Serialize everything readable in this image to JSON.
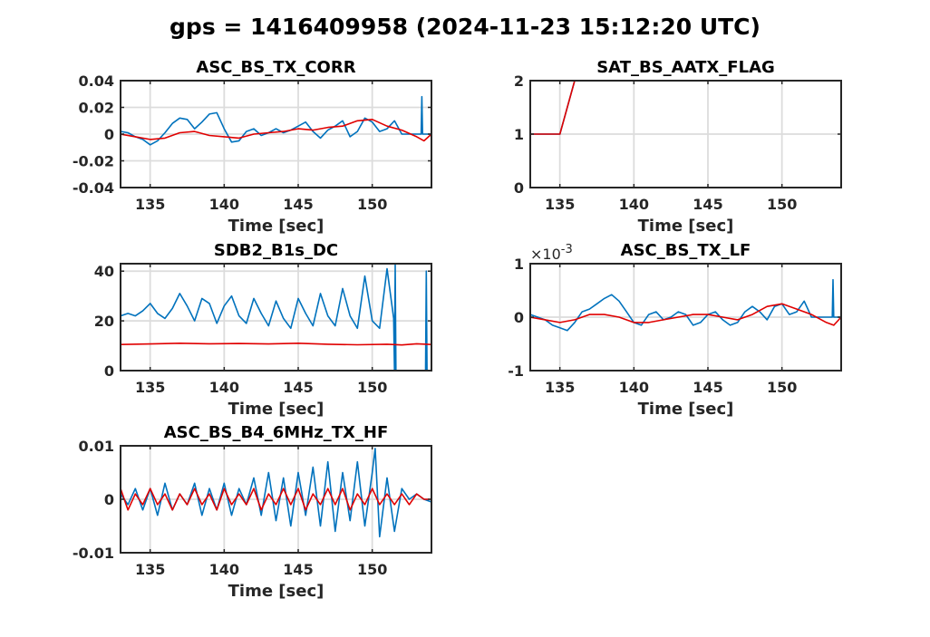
{
  "figure": {
    "suptitle": "gps = 1416409958 (2024-11-23 15:12:20 UTC)"
  },
  "colors": {
    "series_blue": "#0072bd",
    "series_red": "#e00000",
    "grid": "#dcdcdc",
    "axis": "#262626"
  },
  "chart_data": [
    {
      "type": "line",
      "title": "ASC_BS_TX_CORR",
      "xlabel": "Time [sec]",
      "ylabel": "",
      "xlim": [
        133,
        154
      ],
      "ylim": [
        -0.04,
        0.04
      ],
      "xticks": [
        135,
        140,
        145,
        150
      ],
      "yticks": [
        -0.04,
        -0.02,
        0,
        0.02,
        0.04
      ],
      "ytick_labels": [
        "-0.04",
        "-0.02",
        "0",
        "0.02",
        "0.04"
      ],
      "grid": true,
      "series": [
        {
          "color": "blue",
          "x": [
            133,
            133.5,
            134,
            134.5,
            135,
            135.5,
            136,
            136.5,
            137,
            137.5,
            138,
            138.5,
            139,
            139.5,
            140,
            140.5,
            141,
            141.5,
            142,
            142.5,
            143,
            143.5,
            144,
            144.5,
            145,
            145.5,
            146,
            146.5,
            147,
            147.5,
            148,
            148.5,
            149,
            149.5,
            150,
            150.5,
            151,
            151.5,
            152,
            152.5,
            153,
            153.3,
            153.35,
            153.4,
            153.5,
            154
          ],
          "y": [
            0.002,
            0.001,
            -0.002,
            -0.004,
            -0.008,
            -0.005,
            0.001,
            0.008,
            0.012,
            0.011,
            0.004,
            0.009,
            0.015,
            0.016,
            0.004,
            -0.006,
            -0.005,
            0.002,
            0.004,
            -0.001,
            0.001,
            0.004,
            0.001,
            0.003,
            0.006,
            0.009,
            0.002,
            -0.003,
            0.003,
            0.006,
            0.01,
            -0.002,
            0.002,
            0.012,
            0.009,
            0.002,
            0.004,
            0.01,
            0,
            0,
            0,
            0,
            0.028,
            0,
            0,
            0
          ]
        },
        {
          "color": "red",
          "x": [
            133,
            134,
            135,
            136,
            137,
            138,
            139,
            140,
            141,
            142,
            143,
            144,
            145,
            146,
            147,
            148,
            149,
            150,
            151,
            152,
            153,
            153.5,
            154
          ],
          "y": [
            0,
            -0.002,
            -0.004,
            -0.003,
            0.001,
            0.002,
            -0.001,
            -0.002,
            -0.003,
            0,
            0.001,
            0.002,
            0.004,
            0.003,
            0.005,
            0.006,
            0.01,
            0.011,
            0.006,
            0.003,
            -0.002,
            -0.005,
            0
          ]
        }
      ]
    },
    {
      "type": "line",
      "title": "SAT_BS_AATX_FLAG",
      "xlabel": "Time [sec]",
      "ylabel": "",
      "xlim": [
        133,
        154
      ],
      "ylim": [
        0,
        2
      ],
      "xticks": [
        135,
        140,
        145,
        150
      ],
      "yticks": [
        0,
        1,
        2
      ],
      "ytick_labels": [
        "0",
        "1",
        "2"
      ],
      "grid": true,
      "series": [
        {
          "color": "blue",
          "x": [
            133,
            135,
            136,
            154
          ],
          "y": [
            1,
            1,
            2,
            2
          ]
        },
        {
          "color": "red",
          "x": [
            133,
            135,
            136,
            154
          ],
          "y": [
            1,
            1,
            2,
            2
          ]
        }
      ]
    },
    {
      "type": "line",
      "title": "SDB2_B1s_DC",
      "xlabel": "Time [sec]",
      "ylabel": "",
      "xlim": [
        133,
        154
      ],
      "ylim": [
        0,
        43
      ],
      "xticks": [
        135,
        140,
        145,
        150
      ],
      "yticks": [
        0,
        20,
        40
      ],
      "ytick_labels": [
        "0",
        "20",
        "40"
      ],
      "grid": true,
      "series": [
        {
          "color": "blue",
          "x": [
            133,
            133.5,
            134,
            134.5,
            135,
            135.5,
            136,
            136.5,
            137,
            137.5,
            138,
            138.5,
            139,
            139.5,
            140,
            140.5,
            141,
            141.5,
            142,
            142.5,
            143,
            143.5,
            144,
            144.5,
            145,
            145.5,
            146,
            146.5,
            147,
            147.5,
            148,
            148.5,
            149,
            149.5,
            150,
            150.5,
            151,
            151.45,
            151.5,
            151.55,
            151.6,
            152,
            153,
            153.6,
            153.65,
            153.7,
            153.75,
            154
          ],
          "y": [
            22,
            23,
            22,
            24,
            27,
            23,
            21,
            25,
            31,
            26,
            20,
            29,
            27,
            19,
            26,
            30,
            22,
            19,
            29,
            23,
            18,
            28,
            21,
            17,
            29,
            23,
            18,
            31,
            22,
            18,
            33,
            22,
            17,
            38,
            20,
            17,
            41,
            21,
            0,
            43,
            0,
            0,
            0,
            0,
            40,
            0,
            0,
            0
          ]
        },
        {
          "color": "red",
          "x": [
            133,
            135,
            137,
            139,
            141,
            143,
            145,
            147,
            149,
            151,
            152,
            153,
            154
          ],
          "y": [
            10.5,
            10.7,
            11,
            10.8,
            10.9,
            10.7,
            11,
            10.6,
            10.4,
            10.6,
            10.3,
            10.8,
            10.5
          ]
        }
      ]
    },
    {
      "type": "line",
      "title": "ASC_BS_TX_LF",
      "xlabel": "Time [sec]",
      "ylabel": "",
      "exponent_label": "×10",
      "exponent_power": "-3",
      "xlim": [
        133,
        154
      ],
      "ylim": [
        -1,
        1
      ],
      "xticks": [
        135,
        140,
        145,
        150
      ],
      "yticks": [
        -1,
        0,
        1
      ],
      "ytick_labels": [
        "-1",
        "0",
        "1"
      ],
      "grid": true,
      "series": [
        {
          "color": "blue",
          "x": [
            133,
            133.5,
            134,
            134.5,
            135,
            135.5,
            136,
            136.5,
            137,
            137.5,
            138,
            138.5,
            139,
            139.5,
            140,
            140.5,
            141,
            141.5,
            142,
            142.5,
            143,
            143.5,
            144,
            144.5,
            145,
            145.5,
            146,
            146.5,
            147,
            147.5,
            148,
            148.5,
            149,
            149.5,
            150,
            150.5,
            151,
            151.5,
            152,
            153,
            153.4,
            153.45,
            153.5,
            154
          ],
          "y": [
            0.05,
            0,
            -0.05,
            -0.15,
            -0.2,
            -0.25,
            -0.1,
            0.1,
            0.15,
            0.25,
            0.35,
            0.42,
            0.3,
            0.1,
            -0.1,
            -0.15,
            0.05,
            0.1,
            -0.05,
            0,
            0.1,
            0.05,
            -0.15,
            -0.1,
            0.05,
            0.1,
            -0.05,
            -0.15,
            -0.1,
            0.1,
            0.2,
            0.1,
            -0.05,
            0.2,
            0.25,
            0.05,
            0.1,
            0.3,
            0,
            0,
            0,
            0.7,
            0,
            0
          ]
        },
        {
          "color": "red",
          "x": [
            133,
            134,
            135,
            136,
            137,
            138,
            139,
            140,
            141,
            142,
            143,
            144,
            145,
            146,
            147,
            148,
            149,
            150,
            151,
            152,
            153,
            153.5,
            154
          ],
          "y": [
            0,
            -0.05,
            -0.1,
            -0.05,
            0.05,
            0.05,
            0,
            -0.1,
            -0.1,
            -0.05,
            0,
            0.05,
            0.05,
            0,
            -0.05,
            0.05,
            0.2,
            0.25,
            0.15,
            0.05,
            -0.1,
            -0.15,
            0
          ]
        }
      ]
    },
    {
      "type": "line",
      "title": "ASC_BS_B4_6MHz_TX_HF",
      "xlabel": "Time [sec]",
      "ylabel": "",
      "xlim": [
        133,
        154
      ],
      "ylim": [
        -0.01,
        0.01
      ],
      "xticks": [
        135,
        140,
        145,
        150
      ],
      "yticks": [
        -0.01,
        0,
        0.01
      ],
      "ytick_labels": [
        "-0.01",
        "0",
        "0.01"
      ],
      "grid": true,
      "series": [
        {
          "color": "blue",
          "x": [
            133,
            133.5,
            134,
            134.5,
            135,
            135.5,
            136,
            136.5,
            137,
            137.5,
            138,
            138.5,
            139,
            139.5,
            140,
            140.5,
            141,
            141.5,
            142,
            142.5,
            143,
            143.5,
            144,
            144.5,
            145,
            145.5,
            146,
            146.5,
            147,
            147.5,
            148,
            148.5,
            149,
            149.5,
            150,
            150.2,
            150.5,
            151,
            151.5,
            152,
            152.5,
            153,
            153.5,
            154
          ],
          "y": [
            0.001,
            -0.001,
            0.002,
            -0.002,
            0.002,
            -0.003,
            0.003,
            -0.002,
            0.001,
            -0.001,
            0.003,
            -0.003,
            0.002,
            -0.002,
            0.003,
            -0.003,
            0.002,
            -0.001,
            0.004,
            -0.003,
            0.005,
            -0.004,
            0.004,
            -0.005,
            0.005,
            -0.003,
            0.006,
            -0.005,
            0.007,
            -0.006,
            0.005,
            -0.004,
            0.007,
            -0.005,
            0.005,
            0.0095,
            -0.007,
            0.004,
            -0.006,
            0.002,
            0,
            0.001,
            0,
            -0.0005
          ]
        },
        {
          "color": "red",
          "x": [
            133,
            133.5,
            134,
            134.5,
            135,
            135.5,
            136,
            136.5,
            137,
            137.5,
            138,
            138.5,
            139,
            139.5,
            140,
            140.5,
            141,
            141.5,
            142,
            142.5,
            143,
            143.5,
            144,
            144.5,
            145,
            145.5,
            146,
            146.5,
            147,
            147.5,
            148,
            148.5,
            149,
            149.5,
            150,
            150.5,
            151,
            151.5,
            152,
            152.5,
            153,
            153.5,
            154
          ],
          "y": [
            0.002,
            -0.002,
            0.001,
            -0.001,
            0.002,
            -0.001,
            0.001,
            -0.002,
            0.001,
            -0.001,
            0.002,
            -0.001,
            0.001,
            -0.002,
            0.002,
            -0.001,
            0.001,
            -0.001,
            0.002,
            -0.002,
            0.001,
            -0.001,
            0.002,
            -0.001,
            0.002,
            -0.002,
            0.001,
            -0.001,
            0.002,
            -0.001,
            0.002,
            -0.002,
            0.001,
            -0.001,
            0.002,
            -0.001,
            0.001,
            -0.001,
            0.001,
            -0.001,
            0.001,
            0,
            0
          ]
        }
      ]
    }
  ]
}
